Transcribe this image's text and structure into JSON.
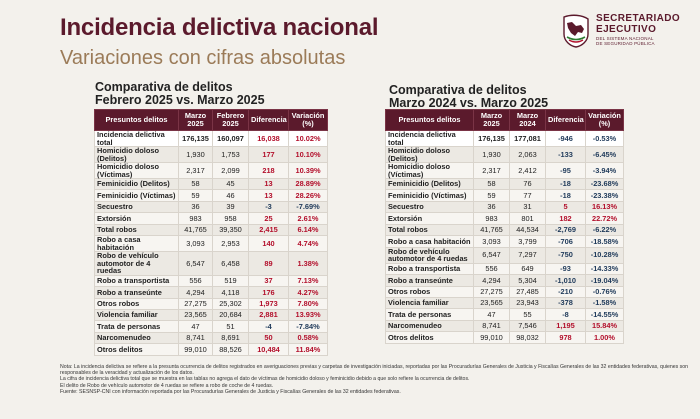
{
  "header": {
    "title": "Incidencia delictiva nacional",
    "subtitle": "Variaciones con cifras absolutas"
  },
  "logo": {
    "line1": "SECRETARIADO",
    "line2": "EJECUTIVO",
    "line3": "DEL SISTEMA NACIONAL",
    "line4": "DE SEGURIDAD PÚBLICA",
    "color": "#5b1a2c"
  },
  "table1": {
    "title_line1": "Comparativa de delitos",
    "title_line2": "Febrero 2025 vs. Marzo 2025",
    "headers": [
      "Presuntos delitos",
      "Marzo 2025",
      "Febrero 2025",
      "Diferencia",
      "Variación (%)"
    ],
    "rows": [
      {
        "crime": "Incidencia delictiva total",
        "a": "176,135",
        "b": "160,097",
        "diff": "16,038",
        "var": "10.02%",
        "dir": "up",
        "total": true
      },
      {
        "crime": "Homicidio doloso (Delitos)",
        "a": "1,930",
        "b": "1,753",
        "diff": "177",
        "var": "10.10%",
        "dir": "up"
      },
      {
        "crime": "Homicidio doloso (Víctimas)",
        "a": "2,317",
        "b": "2,099",
        "diff": "218",
        "var": "10.39%",
        "dir": "up"
      },
      {
        "crime": "Feminicidio (Delitos)",
        "a": "58",
        "b": "45",
        "diff": "13",
        "var": "28.89%",
        "dir": "up"
      },
      {
        "crime": "Feminicidio (Víctimas)",
        "a": "59",
        "b": "46",
        "diff": "13",
        "var": "28.26%",
        "dir": "up"
      },
      {
        "crime": "Secuestro",
        "a": "36",
        "b": "39",
        "diff": "-3",
        "var": "-7.69%",
        "dir": "down"
      },
      {
        "crime": "Extorsión",
        "a": "983",
        "b": "958",
        "diff": "25",
        "var": "2.61%",
        "dir": "up"
      },
      {
        "crime": "Total robos",
        "a": "41,765",
        "b": "39,350",
        "diff": "2,415",
        "var": "6.14%",
        "dir": "up"
      },
      {
        "crime": "Robo a casa habitación",
        "a": "3,093",
        "b": "2,953",
        "diff": "140",
        "var": "4.74%",
        "dir": "up"
      },
      {
        "crime": "Robo de vehículo automotor de 4 ruedas",
        "a": "6,547",
        "b": "6,458",
        "diff": "89",
        "var": "1.38%",
        "dir": "up"
      },
      {
        "crime": "Robo a transportista",
        "a": "556",
        "b": "519",
        "diff": "37",
        "var": "7.13%",
        "dir": "up"
      },
      {
        "crime": "Robo a transeúnte",
        "a": "4,294",
        "b": "4,118",
        "diff": "176",
        "var": "4.27%",
        "dir": "up"
      },
      {
        "crime": "Otros robos",
        "a": "27,275",
        "b": "25,302",
        "diff": "1,973",
        "var": "7.80%",
        "dir": "up"
      },
      {
        "crime": "Violencia familiar",
        "a": "23,565",
        "b": "20,684",
        "diff": "2,881",
        "var": "13.93%",
        "dir": "up"
      },
      {
        "crime": "Trata de personas",
        "a": "47",
        "b": "51",
        "diff": "-4",
        "var": "-7.84%",
        "dir": "down"
      },
      {
        "crime": "Narcomenudeo",
        "a": "8,741",
        "b": "8,691",
        "diff": "50",
        "var": "0.58%",
        "dir": "up"
      },
      {
        "crime": "Otros delitos",
        "a": "99,010",
        "b": "88,526",
        "diff": "10,484",
        "var": "11.84%",
        "dir": "up"
      }
    ]
  },
  "table2": {
    "title_line1": "Comparativa de delitos",
    "title_line2": "Marzo 2024 vs. Marzo 2025",
    "headers": [
      "Presuntos delitos",
      "Marzo 2025",
      "Marzo 2024",
      "Diferencia",
      "Variación (%)"
    ],
    "rows": [
      {
        "crime": "Incidencia delictiva total",
        "a": "176,135",
        "b": "177,081",
        "diff": "-946",
        "var": "-0.53%",
        "dir": "down",
        "total": true
      },
      {
        "crime": "Homicidio doloso (Delitos)",
        "a": "1,930",
        "b": "2,063",
        "diff": "-133",
        "var": "-6.45%",
        "dir": "down"
      },
      {
        "crime": "Homicidio doloso (Víctimas)",
        "a": "2,317",
        "b": "2,412",
        "diff": "-95",
        "var": "-3.94%",
        "dir": "down"
      },
      {
        "crime": "Feminicidio (Delitos)",
        "a": "58",
        "b": "76",
        "diff": "-18",
        "var": "-23.68%",
        "dir": "down"
      },
      {
        "crime": "Feminicidio (Víctimas)",
        "a": "59",
        "b": "77",
        "diff": "-18",
        "var": "-23.38%",
        "dir": "down"
      },
      {
        "crime": "Secuestro",
        "a": "36",
        "b": "31",
        "diff": "5",
        "var": "16.13%",
        "dir": "up"
      },
      {
        "crime": "Extorsión",
        "a": "983",
        "b": "801",
        "diff": "182",
        "var": "22.72%",
        "dir": "up"
      },
      {
        "crime": "Total robos",
        "a": "41,765",
        "b": "44,534",
        "diff": "-2,769",
        "var": "-6.22%",
        "dir": "down"
      },
      {
        "crime": "Robo a casa habitación",
        "a": "3,093",
        "b": "3,799",
        "diff": "-706",
        "var": "-18.58%",
        "dir": "down"
      },
      {
        "crime": "Robo de vehículo automotor de 4 ruedas",
        "a": "6,547",
        "b": "7,297",
        "diff": "-750",
        "var": "-10.28%",
        "dir": "down"
      },
      {
        "crime": "Robo a transportista",
        "a": "556",
        "b": "649",
        "diff": "-93",
        "var": "-14.33%",
        "dir": "down"
      },
      {
        "crime": "Robo a transeúnte",
        "a": "4,294",
        "b": "5,304",
        "diff": "-1,010",
        "var": "-19.04%",
        "dir": "down"
      },
      {
        "crime": "Otros robos",
        "a": "27,275",
        "b": "27,485",
        "diff": "-210",
        "var": "-0.76%",
        "dir": "down"
      },
      {
        "crime": "Violencia familiar",
        "a": "23,565",
        "b": "23,943",
        "diff": "-378",
        "var": "-1.58%",
        "dir": "down"
      },
      {
        "crime": "Trata de personas",
        "a": "47",
        "b": "55",
        "diff": "-8",
        "var": "-14.55%",
        "dir": "down"
      },
      {
        "crime": "Narcomenudeo",
        "a": "8,741",
        "b": "7,546",
        "diff": "1,195",
        "var": "15.84%",
        "dir": "up"
      },
      {
        "crime": "Otros delitos",
        "a": "99,010",
        "b": "98,032",
        "diff": "978",
        "var": "1.00%",
        "dir": "up"
      }
    ]
  },
  "colors": {
    "up": "#b3102c",
    "down": "#1f3a5a",
    "header_bg": "#5b1a2c"
  },
  "notes": [
    "Nota: La incidencia delictiva se refiere a la presunta ocurrencia de delitos registrados en averiguaciones previas y carpetas de investigación iniciadas, reportadas por las Procuradurías Generales de Justicia y Fiscalías Generales de las 32 entidades federativas, quienes son responsables de la veracidad y actualización de los datos.",
    "La cifra de incidencia delictiva total que se muestra en las tablas no agrega el dato de víctimas de homicidio doloso y feminicidio debido a que solo refiere la ocurrencia de delitos.",
    "El delito de Robo de vehículo automotor de 4 ruedas se refiere a robo de coche de 4 ruedas.",
    "Fuente: SESNSP-CNI con información reportada por las Procuradurías Generales de Justicia y Fiscalías Generales de las 32 entidades federativas."
  ]
}
